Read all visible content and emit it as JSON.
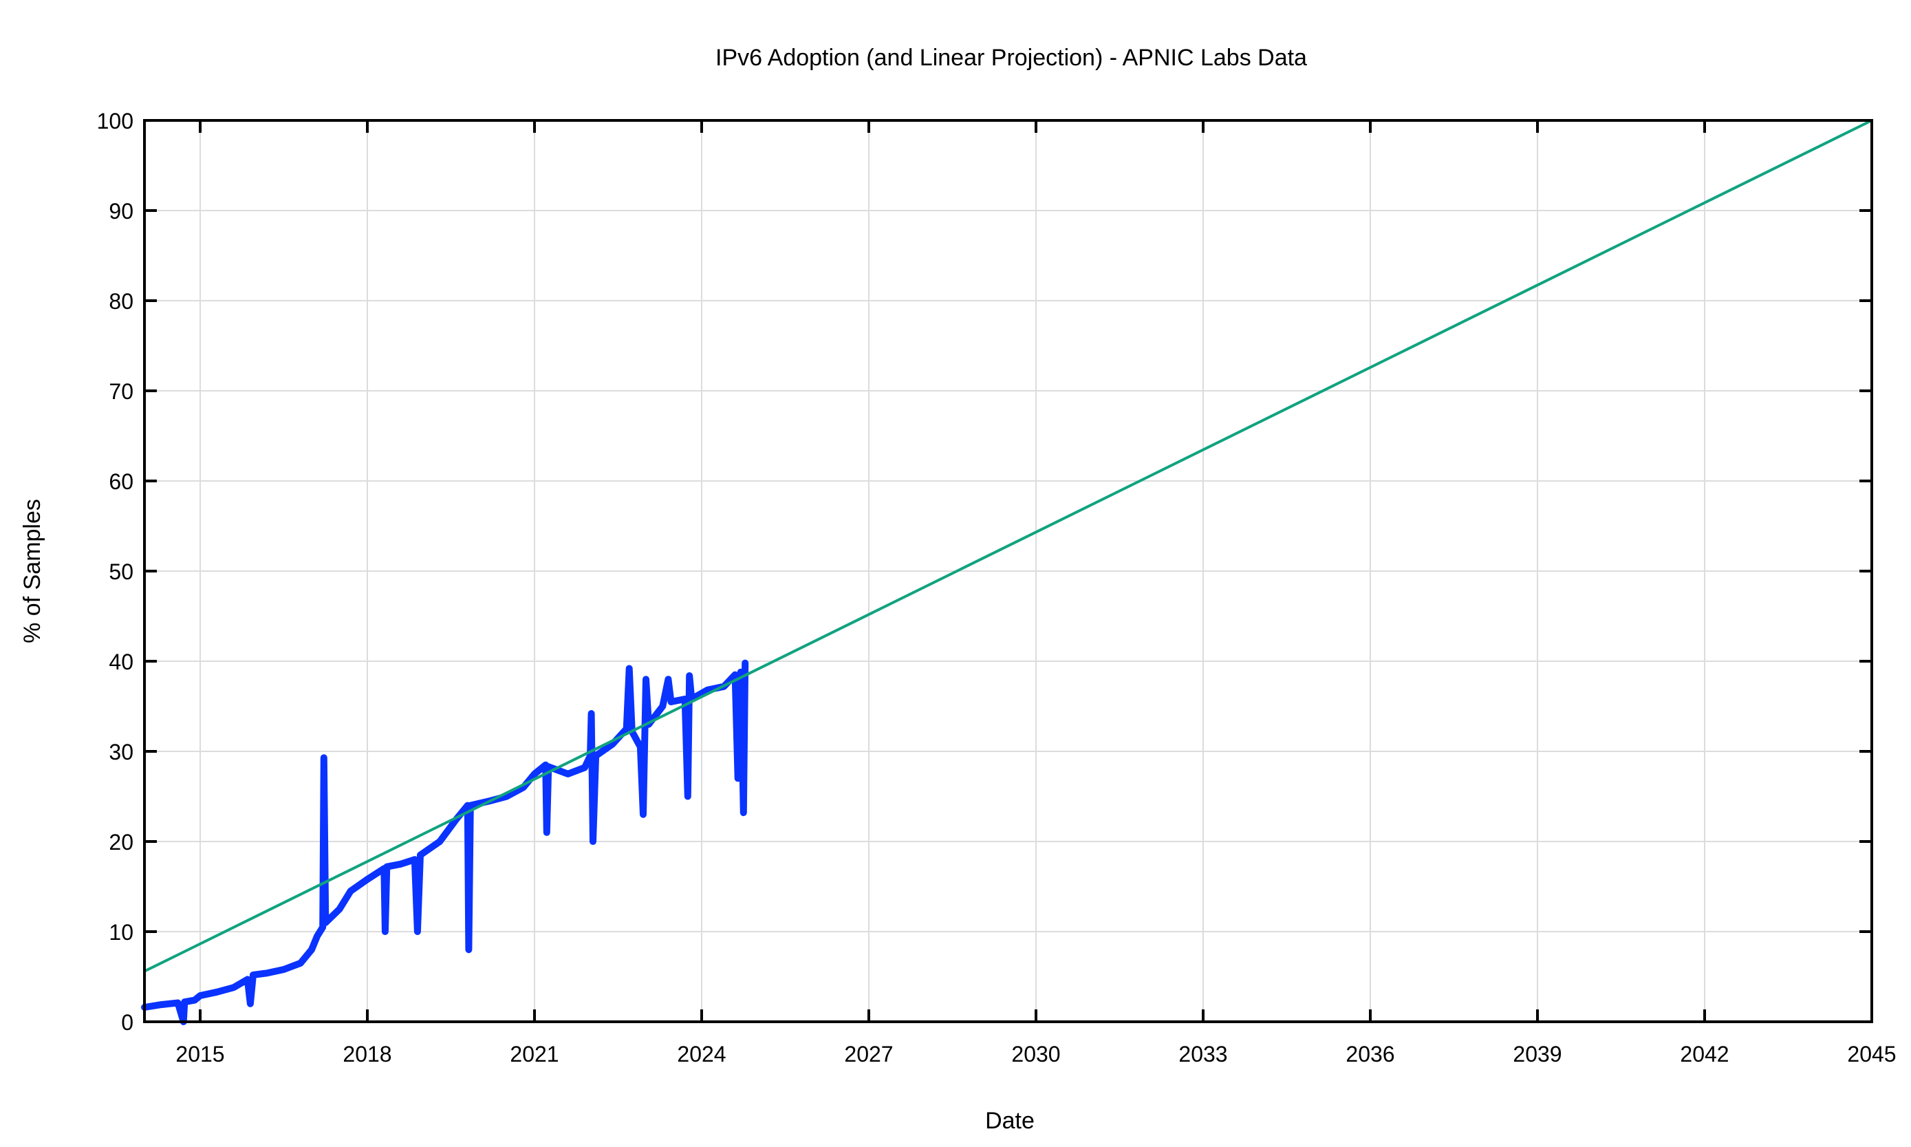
{
  "chart_data": {
    "type": "line",
    "title": "IPv6 Adoption  (and Linear Projection) - APNIC Labs Data",
    "xlabel": "Date",
    "ylabel": "% of Samples",
    "xlim": [
      2014,
      2045
    ],
    "ylim": [
      0,
      100
    ],
    "grid": true,
    "x_ticks": [
      2015,
      2018,
      2021,
      2024,
      2027,
      2030,
      2033,
      2036,
      2039,
      2042,
      2045
    ],
    "y_ticks": [
      0,
      10,
      20,
      30,
      40,
      50,
      60,
      70,
      80,
      90,
      100
    ],
    "series": [
      {
        "color": "#0a33ff",
        "points": [
          [
            2014.0,
            1.6
          ],
          [
            2014.3,
            1.9
          ],
          [
            2014.6,
            2.1
          ],
          [
            2014.7,
            0.0
          ],
          [
            2014.72,
            2.2
          ],
          [
            2014.9,
            2.4
          ],
          [
            2015.0,
            2.9
          ],
          [
            2015.3,
            3.3
          ],
          [
            2015.6,
            3.8
          ],
          [
            2015.85,
            4.7
          ],
          [
            2015.9,
            2.0
          ],
          [
            2015.95,
            5.2
          ],
          [
            2016.2,
            5.4
          ],
          [
            2016.5,
            5.8
          ],
          [
            2016.8,
            6.5
          ],
          [
            2017.0,
            8.0
          ],
          [
            2017.1,
            9.5
          ],
          [
            2017.2,
            10.5
          ],
          [
            2017.22,
            29.3
          ],
          [
            2017.25,
            11.0
          ],
          [
            2017.5,
            12.5
          ],
          [
            2017.7,
            14.5
          ],
          [
            2018.0,
            15.8
          ],
          [
            2018.3,
            17.0
          ],
          [
            2018.32,
            10.0
          ],
          [
            2018.35,
            17.2
          ],
          [
            2018.6,
            17.5
          ],
          [
            2018.85,
            18.0
          ],
          [
            2018.9,
            10.0
          ],
          [
            2018.95,
            18.5
          ],
          [
            2019.3,
            20.0
          ],
          [
            2019.6,
            22.5
          ],
          [
            2019.8,
            24.0
          ],
          [
            2019.82,
            8.0
          ],
          [
            2019.85,
            24.0
          ],
          [
            2020.2,
            24.5
          ],
          [
            2020.5,
            25.0
          ],
          [
            2020.8,
            26.0
          ],
          [
            2021.0,
            27.5
          ],
          [
            2021.2,
            28.5
          ],
          [
            2021.22,
            21.0
          ],
          [
            2021.25,
            28.3
          ],
          [
            2021.6,
            27.5
          ],
          [
            2021.9,
            28.2
          ],
          [
            2022.0,
            29.5
          ],
          [
            2022.02,
            34.2
          ],
          [
            2022.05,
            20.0
          ],
          [
            2022.1,
            29.5
          ],
          [
            2022.4,
            30.8
          ],
          [
            2022.65,
            32.5
          ],
          [
            2022.7,
            39.2
          ],
          [
            2022.75,
            32.2
          ],
          [
            2022.9,
            30.5
          ],
          [
            2022.95,
            23.0
          ],
          [
            2023.0,
            38.0
          ],
          [
            2023.05,
            33.0
          ],
          [
            2023.3,
            35.0
          ],
          [
            2023.4,
            38.0
          ],
          [
            2023.45,
            35.5
          ],
          [
            2023.7,
            35.8
          ],
          [
            2023.75,
            25.0
          ],
          [
            2023.78,
            38.4
          ],
          [
            2023.82,
            35.8
          ],
          [
            2024.1,
            36.8
          ],
          [
            2024.4,
            37.2
          ],
          [
            2024.6,
            38.5
          ],
          [
            2024.65,
            27.0
          ],
          [
            2024.7,
            38.8
          ],
          [
            2024.75,
            23.2
          ],
          [
            2024.78,
            39.8
          ]
        ]
      },
      {
        "color": "#10a37f",
        "points": [
          [
            2014.0,
            5.6
          ],
          [
            2045.0,
            100.0
          ]
        ]
      }
    ]
  }
}
